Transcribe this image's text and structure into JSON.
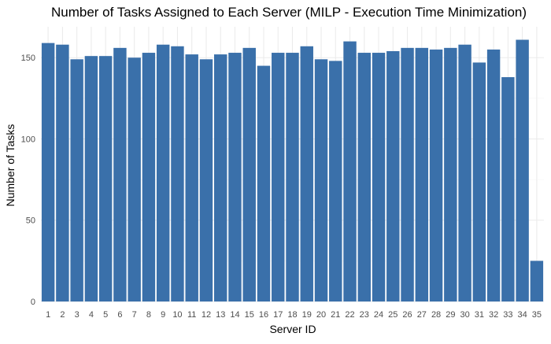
{
  "chart_data": {
    "type": "bar",
    "title": "Number of Tasks Assigned to Each Server (MILP - Execution Time Minimization)",
    "xlabel": "Server ID",
    "ylabel": "Number of Tasks",
    "categories": [
      "1",
      "2",
      "3",
      "4",
      "5",
      "6",
      "7",
      "8",
      "9",
      "10",
      "11",
      "12",
      "13",
      "14",
      "15",
      "16",
      "17",
      "18",
      "19",
      "20",
      "21",
      "22",
      "23",
      "24",
      "25",
      "26",
      "27",
      "28",
      "29",
      "30",
      "31",
      "32",
      "33",
      "34",
      "35"
    ],
    "values": [
      159,
      158,
      149,
      151,
      151,
      156,
      150,
      153,
      158,
      157,
      152,
      149,
      152,
      153,
      156,
      145,
      153,
      153,
      157,
      149,
      148,
      160,
      153,
      153,
      154,
      156,
      156,
      155,
      156,
      158,
      147,
      155,
      138,
      161,
      25
    ],
    "ylim": [
      0,
      169
    ],
    "yticks": [
      0,
      50,
      100,
      150
    ],
    "ytick_labels": [
      "0",
      "50",
      "100",
      "150"
    ],
    "bar_color": "#3a70aa",
    "grid": true,
    "legend": "none"
  }
}
